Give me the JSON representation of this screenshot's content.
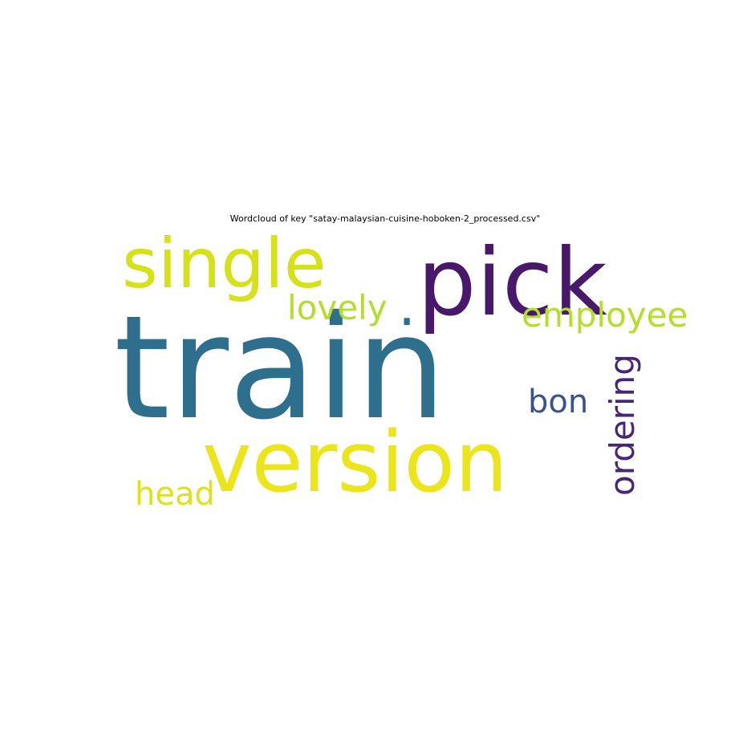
{
  "chart_data": {
    "type": "wordcloud",
    "title": "Wordcloud of key \"satay-malaysian-cuisine-hoboken-2_processed.csv\"",
    "words": [
      {
        "text": "train",
        "weight": 1.0,
        "color": "#2e6f8e"
      },
      {
        "text": "pick",
        "weight": 0.7,
        "color": "#48186a"
      },
      {
        "text": "version",
        "weight": 0.68,
        "color": "#ece51b"
      },
      {
        "text": "single",
        "weight": 0.55,
        "color": "#d5e21a"
      },
      {
        "text": "lovely",
        "weight": 0.3,
        "color": "#b4de2c"
      },
      {
        "text": "employee",
        "weight": 0.3,
        "color": "#b4de2c"
      },
      {
        "text": "ordering",
        "weight": 0.3,
        "color": "#482576"
      },
      {
        "text": "bon",
        "weight": 0.28,
        "color": "#3b528b"
      },
      {
        "text": "head",
        "weight": 0.28,
        "color": "#e0e219"
      },
      {
        "text": ".",
        "weight": 0.28,
        "color": "#2e6f8e"
      }
    ]
  }
}
